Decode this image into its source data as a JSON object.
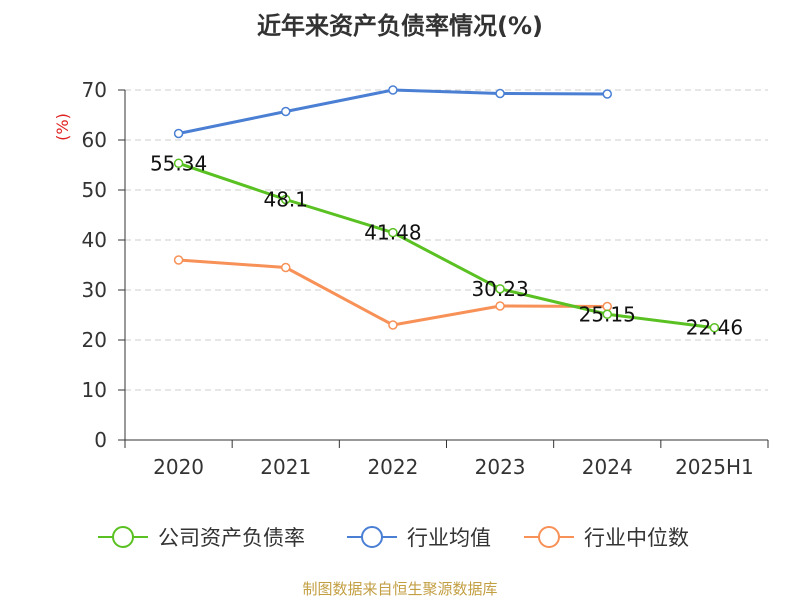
{
  "chart_data": {
    "type": "line",
    "title": "近年来资产负债率情况(%)",
    "ylabel": "(%)",
    "xlabel": "",
    "categories": [
      "2020",
      "2021",
      "2022",
      "2023",
      "2024",
      "2025H1"
    ],
    "ylim": [
      0,
      70
    ],
    "yticks": [
      0,
      10,
      20,
      30,
      40,
      50,
      60,
      70
    ],
    "grid": true,
    "legend_position": "bottom",
    "series": [
      {
        "name": "公司资产负债率",
        "values": [
          55.34,
          48.1,
          41.48,
          30.23,
          25.15,
          22.46
        ],
        "labels": [
          "55.34",
          "48.1",
          "41.48",
          "30.23",
          "25.15",
          "22.46"
        ],
        "color": "#5ac122"
      },
      {
        "name": "行业均值",
        "values": [
          61.3,
          65.7,
          70.0,
          69.3,
          69.2,
          null
        ],
        "labels": [],
        "color": "#4a7fd4"
      },
      {
        "name": "行业中位数",
        "values": [
          36.0,
          34.5,
          23.0,
          26.8,
          26.7,
          null
        ],
        "labels": [],
        "color": "#f79157"
      }
    ]
  },
  "source": "制图数据来自恒生聚源数据库"
}
